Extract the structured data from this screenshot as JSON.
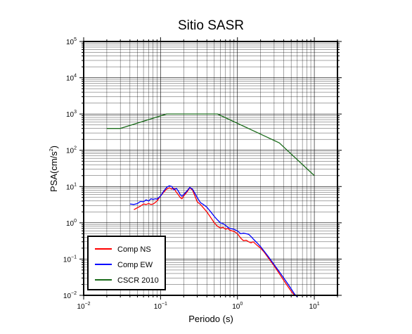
{
  "chart_data": {
    "type": "line",
    "title": "Sitio SASR",
    "xlabel": "Periodo (s)",
    "ylabel_base": "PSA(cm/s",
    "ylabel_exp": "2",
    "ylabel_close": ")",
    "xscale": "log",
    "yscale": "log",
    "xlim": [
      0.01,
      20
    ],
    "ylim": [
      0.01,
      100000
    ],
    "grid": true,
    "legend_position": "bottom-left",
    "x_ticks": [
      {
        "base": "10",
        "exp": "−2",
        "value": 0.01
      },
      {
        "base": "10",
        "exp": "−1",
        "value": 0.1
      },
      {
        "base": "10",
        "exp": "0",
        "value": 1
      },
      {
        "base": "10",
        "exp": "1",
        "value": 10
      }
    ],
    "y_ticks": [
      {
        "base": "10",
        "exp": "−2",
        "value": 0.01
      },
      {
        "base": "10",
        "exp": "−1",
        "value": 0.1
      },
      {
        "base": "10",
        "exp": "0",
        "value": 1
      },
      {
        "base": "10",
        "exp": "1",
        "value": 10
      },
      {
        "base": "10",
        "exp": "2",
        "value": 100
      },
      {
        "base": "10",
        "exp": "3",
        "value": 1000
      },
      {
        "base": "10",
        "exp": "4",
        "value": 10000
      },
      {
        "base": "10",
        "exp": "5",
        "value": 100000
      }
    ],
    "series": [
      {
        "name": "Comp NS",
        "color": "#ff0000",
        "points": [
          [
            0.045,
            2.3
          ],
          [
            0.05,
            2.6
          ],
          [
            0.055,
            2.9
          ],
          [
            0.06,
            3.3
          ],
          [
            0.065,
            3.2
          ],
          [
            0.07,
            3.4
          ],
          [
            0.075,
            3.2
          ],
          [
            0.08,
            3.3
          ],
          [
            0.085,
            3.6
          ],
          [
            0.09,
            4.0
          ],
          [
            0.1,
            5.5
          ],
          [
            0.11,
            7.0
          ],
          [
            0.12,
            8.5
          ],
          [
            0.13,
            9.2
          ],
          [
            0.14,
            8.5
          ],
          [
            0.15,
            9.0
          ],
          [
            0.16,
            7.0
          ],
          [
            0.17,
            6.0
          ],
          [
            0.18,
            5.0
          ],
          [
            0.19,
            4.6
          ],
          [
            0.2,
            5.5
          ],
          [
            0.22,
            7.0
          ],
          [
            0.24,
            9.2
          ],
          [
            0.26,
            8.0
          ],
          [
            0.28,
            5.5
          ],
          [
            0.3,
            3.8
          ],
          [
            0.33,
            3.2
          ],
          [
            0.36,
            2.6
          ],
          [
            0.4,
            2.0
          ],
          [
            0.45,
            1.4
          ],
          [
            0.5,
            1.0
          ],
          [
            0.55,
            0.8
          ],
          [
            0.6,
            0.72
          ],
          [
            0.65,
            0.75
          ],
          [
            0.7,
            0.66
          ],
          [
            0.75,
            0.7
          ],
          [
            0.8,
            0.62
          ],
          [
            0.9,
            0.58
          ],
          [
            1.0,
            0.5
          ],
          [
            1.1,
            0.38
          ],
          [
            1.2,
            0.32
          ],
          [
            1.3,
            0.33
          ],
          [
            1.4,
            0.3
          ],
          [
            1.5,
            0.28
          ],
          [
            1.6,
            0.3
          ],
          [
            1.8,
            0.24
          ],
          [
            2.0,
            0.2
          ],
          [
            2.2,
            0.16
          ],
          [
            2.5,
            0.11
          ],
          [
            3.0,
            0.065
          ],
          [
            3.5,
            0.04
          ],
          [
            4.0,
            0.026
          ],
          [
            4.5,
            0.018
          ],
          [
            5.0,
            0.013
          ],
          [
            5.5,
            0.01
          ]
        ]
      },
      {
        "name": "Comp EW",
        "color": "#0000ff",
        "points": [
          [
            0.04,
            3.3
          ],
          [
            0.045,
            3.2
          ],
          [
            0.05,
            3.4
          ],
          [
            0.055,
            3.9
          ],
          [
            0.06,
            3.8
          ],
          [
            0.065,
            4.3
          ],
          [
            0.07,
            4.0
          ],
          [
            0.075,
            4.6
          ],
          [
            0.08,
            4.4
          ],
          [
            0.085,
            4.6
          ],
          [
            0.09,
            4.5
          ],
          [
            0.1,
            5.5
          ],
          [
            0.11,
            7.5
          ],
          [
            0.12,
            9.5
          ],
          [
            0.13,
            10.5
          ],
          [
            0.14,
            10.0
          ],
          [
            0.15,
            8.0
          ],
          [
            0.16,
            9.0
          ],
          [
            0.17,
            7.5
          ],
          [
            0.18,
            6.0
          ],
          [
            0.19,
            5.4
          ],
          [
            0.2,
            6.0
          ],
          [
            0.22,
            7.5
          ],
          [
            0.24,
            9.5
          ],
          [
            0.26,
            8.5
          ],
          [
            0.28,
            6.5
          ],
          [
            0.3,
            5.0
          ],
          [
            0.33,
            3.6
          ],
          [
            0.36,
            3.2
          ],
          [
            0.4,
            2.7
          ],
          [
            0.45,
            2.0
          ],
          [
            0.5,
            1.5
          ],
          [
            0.55,
            1.2
          ],
          [
            0.6,
            1.0
          ],
          [
            0.65,
            0.95
          ],
          [
            0.7,
            0.85
          ],
          [
            0.75,
            0.75
          ],
          [
            0.8,
            0.7
          ],
          [
            0.9,
            0.66
          ],
          [
            1.0,
            0.6
          ],
          [
            1.1,
            0.5
          ],
          [
            1.2,
            0.52
          ],
          [
            1.3,
            0.5
          ],
          [
            1.4,
            0.48
          ],
          [
            1.5,
            0.42
          ],
          [
            1.6,
            0.36
          ],
          [
            1.8,
            0.28
          ],
          [
            2.0,
            0.22
          ],
          [
            2.2,
            0.17
          ],
          [
            2.5,
            0.12
          ],
          [
            3.0,
            0.07
          ],
          [
            3.5,
            0.045
          ],
          [
            4.0,
            0.03
          ],
          [
            4.5,
            0.021
          ],
          [
            5.0,
            0.015
          ],
          [
            5.5,
            0.011
          ],
          [
            6.0,
            0.009
          ]
        ]
      },
      {
        "name": "CSCR 2010",
        "color": "#1a6b1a",
        "points": [
          [
            0.02,
            400
          ],
          [
            0.03,
            400
          ],
          [
            0.12,
            1000
          ],
          [
            0.55,
            1000
          ],
          [
            3.5,
            160
          ],
          [
            10,
            20
          ]
        ]
      }
    ]
  }
}
